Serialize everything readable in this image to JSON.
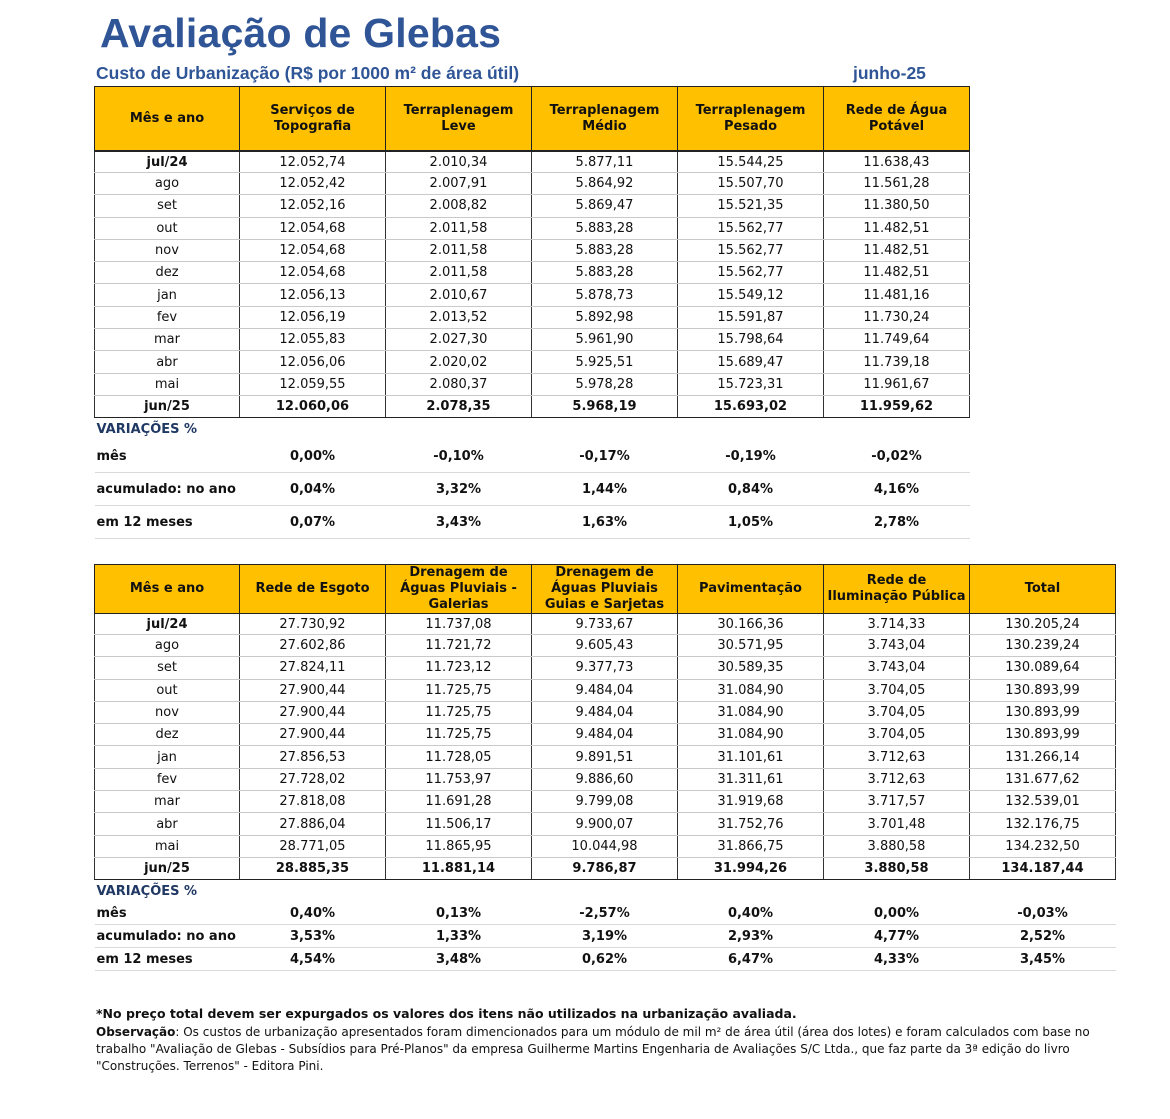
{
  "title": "Avaliação de Glebas",
  "subtitle": "Custo de Urbanização (R$ por 1000 m² de área útil)",
  "date": "junho-25",
  "table1": {
    "headers": [
      "Mês e ano",
      "Serviços de Topografia",
      "Terraplenagem Leve",
      "Terraplenagem Médio",
      "Terraplenagem Pesado",
      "Rede de Água Potável"
    ],
    "rows": [
      [
        "jul/24",
        "12.052,74",
        "2.010,34",
        "5.877,11",
        "15.544,25",
        "11.638,43"
      ],
      [
        "ago",
        "12.052,42",
        "2.007,91",
        "5.864,92",
        "15.507,70",
        "11.561,28"
      ],
      [
        "set",
        "12.052,16",
        "2.008,82",
        "5.869,47",
        "15.521,35",
        "11.380,50"
      ],
      [
        "out",
        "12.054,68",
        "2.011,58",
        "5.883,28",
        "15.562,77",
        "11.482,51"
      ],
      [
        "nov",
        "12.054,68",
        "2.011,58",
        "5.883,28",
        "15.562,77",
        "11.482,51"
      ],
      [
        "dez",
        "12.054,68",
        "2.011,58",
        "5.883,28",
        "15.562,77",
        "11.482,51"
      ],
      [
        "jan",
        "12.056,13",
        "2.010,67",
        "5.878,73",
        "15.549,12",
        "11.481,16"
      ],
      [
        "fev",
        "12.056,19",
        "2.013,52",
        "5.892,98",
        "15.591,87",
        "11.730,24"
      ],
      [
        "mar",
        "12.055,83",
        "2.027,30",
        "5.961,90",
        "15.798,64",
        "11.749,64"
      ],
      [
        "abr",
        "12.056,06",
        "2.020,02",
        "5.925,51",
        "15.689,47",
        "11.739,18"
      ],
      [
        "mai",
        "12.059,55",
        "2.080,37",
        "5.978,28",
        "15.723,31",
        "11.961,67"
      ],
      [
        "jun/25",
        "12.060,06",
        "2.078,35",
        "5.968,19",
        "15.693,02",
        "11.959,62"
      ]
    ],
    "variations_label": "VARIAÇÕES %",
    "variations": [
      {
        "label": "mês",
        "values": [
          "0,00%",
          "-0,10%",
          "-0,17%",
          "-0,19%",
          "-0,02%"
        ]
      },
      {
        "label": "acumulado: no ano",
        "values": [
          "0,04%",
          "3,32%",
          "1,44%",
          "0,84%",
          "4,16%"
        ]
      },
      {
        "label": "em 12 meses",
        "values": [
          "0,07%",
          "3,43%",
          "1,63%",
          "1,05%",
          "2,78%"
        ]
      }
    ]
  },
  "table2": {
    "headers": [
      "Mês e ano",
      "Rede de Esgoto",
      "Drenagem de Águas Pluviais - Galerias",
      "Drenagem de Águas Pluviais Guias e Sarjetas",
      "Pavimentação",
      "Rede de Iluminação Pública",
      "Total"
    ],
    "rows": [
      [
        "jul/24",
        "27.730,92",
        "11.737,08",
        "9.733,67",
        "30.166,36",
        "3.714,33",
        "130.205,24"
      ],
      [
        "ago",
        "27.602,86",
        "11.721,72",
        "9.605,43",
        "30.571,95",
        "3.743,04",
        "130.239,24"
      ],
      [
        "set",
        "27.824,11",
        "11.723,12",
        "9.377,73",
        "30.589,35",
        "3.743,04",
        "130.089,64"
      ],
      [
        "out",
        "27.900,44",
        "11.725,75",
        "9.484,04",
        "31.084,90",
        "3.704,05",
        "130.893,99"
      ],
      [
        "nov",
        "27.900,44",
        "11.725,75",
        "9.484,04",
        "31.084,90",
        "3.704,05",
        "130.893,99"
      ],
      [
        "dez",
        "27.900,44",
        "11.725,75",
        "9.484,04",
        "31.084,90",
        "3.704,05",
        "130.893,99"
      ],
      [
        "jan",
        "27.856,53",
        "11.728,05",
        "9.891,51",
        "31.101,61",
        "3.712,63",
        "131.266,14"
      ],
      [
        "fev",
        "27.728,02",
        "11.753,97",
        "9.886,60",
        "31.311,61",
        "3.712,63",
        "131.677,62"
      ],
      [
        "mar",
        "27.818,08",
        "11.691,28",
        "9.799,08",
        "31.919,68",
        "3.717,57",
        "132.539,01"
      ],
      [
        "abr",
        "27.886,04",
        "11.506,17",
        "9.900,07",
        "31.752,76",
        "3.701,48",
        "132.176,75"
      ],
      [
        "mai",
        "28.771,05",
        "11.865,95",
        "10.044,98",
        "31.866,75",
        "3.880,58",
        "134.232,50"
      ],
      [
        "jun/25",
        "28.885,35",
        "11.881,14",
        "9.786,87",
        "31.994,26",
        "3.880,58",
        "134.187,44"
      ]
    ],
    "variations_label": "VARIAÇÕES %",
    "variations": [
      {
        "label": "mês",
        "values": [
          "0,40%",
          "0,13%",
          "-2,57%",
          "0,40%",
          "0,00%",
          "-0,03%"
        ]
      },
      {
        "label": "acumulado: no ano",
        "values": [
          "3,53%",
          "1,33%",
          "3,19%",
          "2,93%",
          "4,77%",
          "2,52%"
        ]
      },
      {
        "label": "em 12 meses",
        "values": [
          "4,54%",
          "3,48%",
          "0,62%",
          "6,47%",
          "4,33%",
          "3,45%"
        ]
      }
    ]
  },
  "notes": {
    "note1": "*No preço total devem ser expurgados os valores dos itens não utilizados na urbanização avaliada.",
    "obs_label": "Observação",
    "obs_text": ": Os custos de urbanização apresentados foram dimencionados para um módulo de mil m² de área útil (área dos lotes) e foram calculados com base no trabalho \"Avaliação de Glebas - Subsídios para Pré-Planos\" da empresa Guilherme Martins Engenharia de Avaliações S/C Ltda., que faz parte da 3ª edição do livro \"Construções. Terrenos\" - Editora Pini."
  }
}
